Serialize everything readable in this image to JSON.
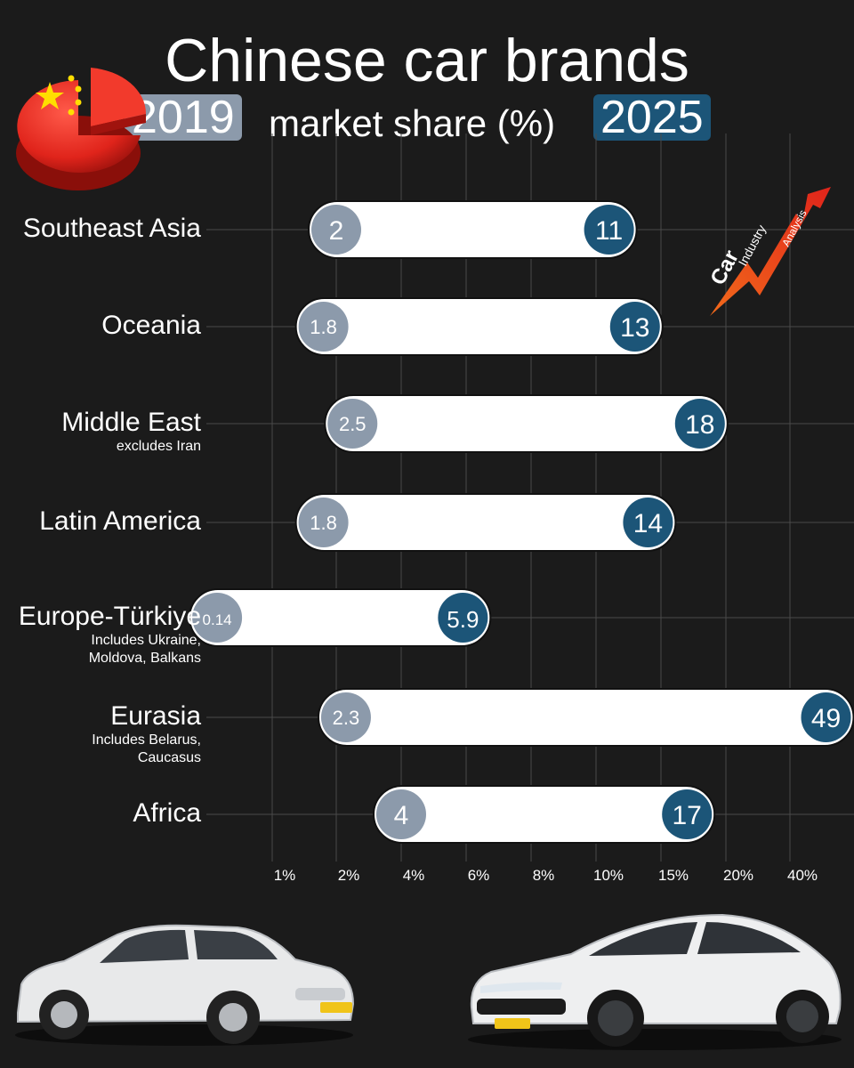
{
  "title": "Chinese car brands",
  "subtitle": {
    "year_a": "2019",
    "middle": "market share (%)",
    "year_b": "2025"
  },
  "logo": {
    "word1": "Car",
    "word2": "Industry",
    "word3": "Analysis"
  },
  "colors": {
    "background": "#1b1b1b",
    "y2019": "#8c9aab",
    "y2025": "#1c5578",
    "bar": "#ffffff"
  },
  "chart_data": {
    "type": "dumbbell",
    "x_scale": "nonlinear",
    "x_ticks": [
      "1%",
      "2%",
      "4%",
      "6%",
      "8%",
      "10%",
      "15%",
      "20%",
      "40%"
    ],
    "series": [
      {
        "name": "2019"
      },
      {
        "name": "2025"
      }
    ],
    "categories": [
      {
        "label": "Southeast Asia",
        "note": "",
        "v2019": "2",
        "v2025": "11"
      },
      {
        "label": "Oceania",
        "note": "",
        "v2019": "1.8",
        "v2025": "13"
      },
      {
        "label": "Middle East",
        "note": "excludes Iran",
        "v2019": "2.5",
        "v2025": "18"
      },
      {
        "label": "Latin America",
        "note": "",
        "v2019": "1.8",
        "v2025": "14"
      },
      {
        "label": "Europe-Türkiye",
        "note": "Includes Ukraine, Moldova, Balkans",
        "v2019": "0.14",
        "v2025": "5.9"
      },
      {
        "label": "Eurasia",
        "note": "Includes Belarus, Caucasus",
        "v2019": "2.3",
        "v2025": "49"
      },
      {
        "label": "Africa",
        "note": "",
        "v2019": "4",
        "v2025": "17"
      }
    ]
  }
}
